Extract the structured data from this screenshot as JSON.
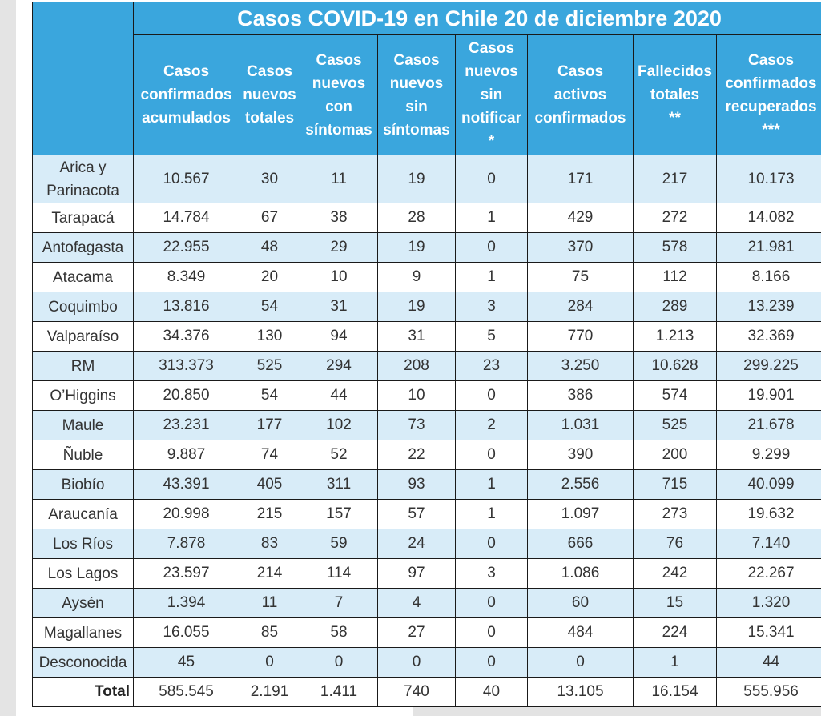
{
  "title": "Casos COVID-19 en Chile 20 de diciembre 2020",
  "headers": [
    {
      "l1": "Casos",
      "l2": "confirmados",
      "l3": "acumulados",
      "l4": ""
    },
    {
      "l1": "Casos",
      "l2": "nuevos",
      "l3": "totales",
      "l4": ""
    },
    {
      "l1": "Casos",
      "l2": "nuevos",
      "l3": "con",
      "l4": "síntomas"
    },
    {
      "l1": "Casos",
      "l2": "nuevos",
      "l3": "sin",
      "l4": "síntomas"
    },
    {
      "l1": "Casos",
      "l2": "nuevos",
      "l3": "sin",
      "l4": "notificar",
      "l5": "*"
    },
    {
      "l1": "Casos",
      "l2": "activos",
      "l3": "confirmados",
      "l4": ""
    },
    {
      "l1": "Fallecidos",
      "l2": "totales",
      "l3": "**",
      "l4": ""
    },
    {
      "l1": "Casos",
      "l2": "confirmados",
      "l3": "recuperados",
      "l4": "***"
    }
  ],
  "rows": [
    {
      "region": "Arica y Parinacota",
      "values": [
        "10.567",
        "30",
        "11",
        "19",
        "0",
        "171",
        "217",
        "10.173"
      ]
    },
    {
      "region": "Tarapacá",
      "values": [
        "14.784",
        "67",
        "38",
        "28",
        "1",
        "429",
        "272",
        "14.082"
      ]
    },
    {
      "region": "Antofagasta",
      "values": [
        "22.955",
        "48",
        "29",
        "19",
        "0",
        "370",
        "578",
        "21.981"
      ]
    },
    {
      "region": "Atacama",
      "values": [
        "8.349",
        "20",
        "10",
        "9",
        "1",
        "75",
        "112",
        "8.166"
      ]
    },
    {
      "region": "Coquimbo",
      "values": [
        "13.816",
        "54",
        "31",
        "19",
        "3",
        "284",
        "289",
        "13.239"
      ]
    },
    {
      "region": "Valparaíso",
      "values": [
        "34.376",
        "130",
        "94",
        "31",
        "5",
        "770",
        "1.213",
        "32.369"
      ]
    },
    {
      "region": "RM",
      "values": [
        "313.373",
        "525",
        "294",
        "208",
        "23",
        "3.250",
        "10.628",
        "299.225"
      ]
    },
    {
      "region": "O’Higgins",
      "values": [
        "20.850",
        "54",
        "44",
        "10",
        "0",
        "386",
        "574",
        "19.901"
      ]
    },
    {
      "region": "Maule",
      "values": [
        "23.231",
        "177",
        "102",
        "73",
        "2",
        "1.031",
        "525",
        "21.678"
      ]
    },
    {
      "region": "Ñuble",
      "values": [
        "9.887",
        "74",
        "52",
        "22",
        "0",
        "390",
        "200",
        "9.299"
      ]
    },
    {
      "region": "Biobío",
      "values": [
        "43.391",
        "405",
        "311",
        "93",
        "1",
        "2.556",
        "715",
        "40.099"
      ]
    },
    {
      "region": "Araucanía",
      "values": [
        "20.998",
        "215",
        "157",
        "57",
        "1",
        "1.097",
        "273",
        "19.632"
      ]
    },
    {
      "region": "Los Ríos",
      "values": [
        "7.878",
        "83",
        "59",
        "24",
        "0",
        "666",
        "76",
        "7.140"
      ]
    },
    {
      "region": "Los Lagos",
      "values": [
        "23.597",
        "214",
        "114",
        "97",
        "3",
        "1.086",
        "242",
        "22.267"
      ]
    },
    {
      "region": "Aysén",
      "values": [
        "1.394",
        "11",
        "7",
        "4",
        "0",
        "60",
        "15",
        "1.320"
      ]
    },
    {
      "region": "Magallanes",
      "values": [
        "16.055",
        "85",
        "58",
        "27",
        "0",
        "484",
        "224",
        "15.341"
      ]
    },
    {
      "region": "Desconocida",
      "values": [
        "45",
        "0",
        "0",
        "0",
        "0",
        "0",
        "1",
        "44"
      ]
    }
  ],
  "total": {
    "label": "Total",
    "values": [
      "585.545",
      "2.191",
      "1.411",
      "740",
      "40",
      "13.105",
      "16.154",
      "555.956"
    ]
  },
  "colors": {
    "header_blue": "#3aa6dd",
    "row_light_blue": "#d8ecf8",
    "row_white": "#ffffff"
  }
}
